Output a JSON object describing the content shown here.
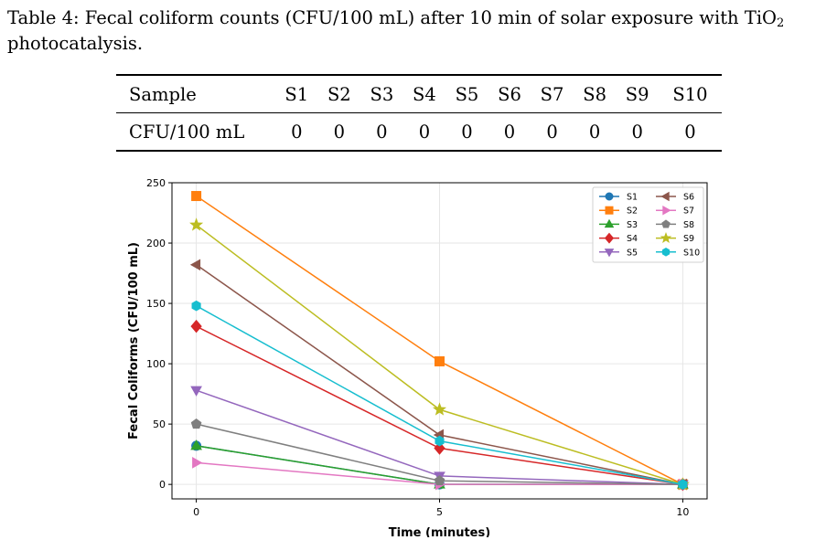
{
  "caption": {
    "prefix": "Table 4: Fecal coliform counts (CFU/100 mL) after 10 min of solar exposure with TiO",
    "subscript": "2",
    "suffix": "photocatalysis."
  },
  "table": {
    "header_label": "Sample",
    "columns": [
      "S1",
      "S2",
      "S3",
      "S4",
      "S5",
      "S6",
      "S7",
      "S8",
      "S9",
      "S10"
    ],
    "row_label": "CFU/100 mL",
    "values": [
      "0",
      "0",
      "0",
      "0",
      "0",
      "0",
      "0",
      "0",
      "0",
      "0"
    ]
  },
  "chart_data": {
    "type": "line",
    "title": "",
    "xlabel": "Time (minutes)",
    "ylabel": "Fecal Coliforms (CFU/100 mL)",
    "x": [
      0,
      5,
      10
    ],
    "xticks": [
      0,
      5,
      10
    ],
    "yticks": [
      0,
      50,
      100,
      150,
      200,
      250
    ],
    "xlim": [
      -0.5,
      10.5
    ],
    "ylim": [
      -12,
      250
    ],
    "grid": true,
    "legend_position": "top-right",
    "legend_columns": 2,
    "series": [
      {
        "name": "S1",
        "values": [
          32,
          0,
          0
        ],
        "color": "#1f77b4",
        "marker": "circle"
      },
      {
        "name": "S2",
        "values": [
          239,
          102,
          0
        ],
        "color": "#ff7f0e",
        "marker": "square"
      },
      {
        "name": "S3",
        "values": [
          32,
          0,
          0
        ],
        "color": "#2ca02c",
        "marker": "triangle-up"
      },
      {
        "name": "S4",
        "values": [
          131,
          30,
          0
        ],
        "color": "#d62728",
        "marker": "diamond"
      },
      {
        "name": "S5",
        "values": [
          78,
          7,
          0
        ],
        "color": "#9467bd",
        "marker": "triangle-down"
      },
      {
        "name": "S6",
        "values": [
          182,
          41,
          0
        ],
        "color": "#8c564b",
        "marker": "triangle-left"
      },
      {
        "name": "S7",
        "values": [
          18,
          0,
          0
        ],
        "color": "#e377c2",
        "marker": "triangle-right"
      },
      {
        "name": "S8",
        "values": [
          50,
          3,
          0
        ],
        "color": "#7f7f7f",
        "marker": "pentagon"
      },
      {
        "name": "S9",
        "values": [
          215,
          62,
          0
        ],
        "color": "#bcbd22",
        "marker": "star"
      },
      {
        "name": "S10",
        "values": [
          148,
          36,
          0
        ],
        "color": "#17becf",
        "marker": "hexagon"
      }
    ]
  }
}
